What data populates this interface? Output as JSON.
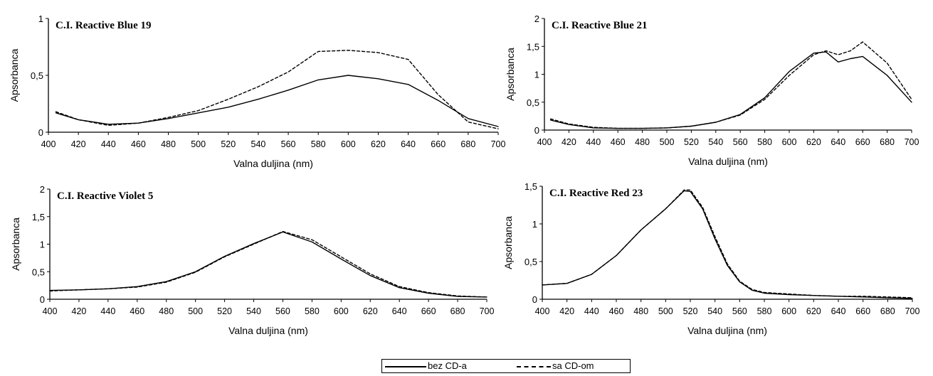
{
  "chart_data": [
    {
      "type": "line",
      "title": "C.I. Reactive Blue 19",
      "xlabel": "Valna duljina (nm)",
      "ylabel": "Apsorbanca",
      "xlim": [
        400,
        700
      ],
      "ylim": [
        0,
        1
      ],
      "xticks": [
        400,
        420,
        440,
        460,
        480,
        500,
        520,
        540,
        560,
        580,
        600,
        620,
        640,
        660,
        680,
        700
      ],
      "yticks": [
        0,
        0.5,
        1
      ],
      "ytick_labels": [
        "0",
        "0,5",
        "1"
      ],
      "series": [
        {
          "name": "bez CD-a",
          "style": "solid",
          "x": [
            405,
            420,
            440,
            460,
            480,
            500,
            520,
            540,
            560,
            580,
            600,
            620,
            640,
            660,
            680,
            700
          ],
          "y": [
            0.17,
            0.11,
            0.07,
            0.08,
            0.12,
            0.17,
            0.22,
            0.29,
            0.37,
            0.46,
            0.5,
            0.47,
            0.42,
            0.28,
            0.12,
            0.05
          ]
        },
        {
          "name": "sa CD-om",
          "style": "dashed",
          "x": [
            405,
            420,
            440,
            460,
            480,
            500,
            520,
            540,
            560,
            580,
            600,
            620,
            640,
            660,
            680,
            700
          ],
          "y": [
            0.18,
            0.11,
            0.06,
            0.08,
            0.13,
            0.19,
            0.29,
            0.4,
            0.53,
            0.71,
            0.72,
            0.7,
            0.64,
            0.33,
            0.09,
            0.03
          ]
        }
      ]
    },
    {
      "type": "line",
      "title": "C.I. Reactive Blue 21",
      "xlabel": "Valna duljina (nm)",
      "ylabel": "Apsorbanca",
      "xlim": [
        400,
        700
      ],
      "ylim": [
        0,
        2
      ],
      "xticks": [
        400,
        420,
        440,
        460,
        480,
        500,
        520,
        540,
        560,
        580,
        600,
        620,
        640,
        660,
        680,
        700
      ],
      "yticks": [
        0,
        0.5,
        1,
        1.5,
        2
      ],
      "ytick_labels": [
        "0",
        "0,5",
        "1",
        "1,5",
        "2"
      ],
      "series": [
        {
          "name": "bez CD-a",
          "style": "solid",
          "x": [
            405,
            420,
            440,
            460,
            480,
            500,
            520,
            540,
            560,
            580,
            600,
            620,
            630,
            640,
            650,
            660,
            680,
            700
          ],
          "y": [
            0.18,
            0.1,
            0.04,
            0.03,
            0.03,
            0.04,
            0.07,
            0.14,
            0.28,
            0.58,
            1.05,
            1.38,
            1.4,
            1.22,
            1.28,
            1.32,
            0.98,
            0.5
          ]
        },
        {
          "name": "sa CD-om",
          "style": "dashed",
          "x": [
            405,
            420,
            440,
            460,
            480,
            500,
            520,
            540,
            560,
            580,
            600,
            620,
            630,
            640,
            650,
            660,
            680,
            700
          ],
          "y": [
            0.2,
            0.11,
            0.05,
            0.03,
            0.03,
            0.04,
            0.07,
            0.14,
            0.27,
            0.55,
            0.98,
            1.35,
            1.42,
            1.35,
            1.42,
            1.58,
            1.2,
            0.55
          ]
        }
      ]
    },
    {
      "type": "line",
      "title": "C.I. Reactive Violet 5",
      "xlabel": "Valna duljina (nm)",
      "ylabel": "Apsorbanca",
      "xlim": [
        400,
        700
      ],
      "ylim": [
        0,
        2
      ],
      "xticks": [
        400,
        420,
        440,
        460,
        480,
        500,
        520,
        540,
        560,
        580,
        600,
        620,
        640,
        660,
        680,
        700
      ],
      "yticks": [
        0,
        0.5,
        1,
        1.5,
        2
      ],
      "ytick_labels": [
        "0",
        "0,5",
        "1",
        "1,5",
        "2"
      ],
      "series": [
        {
          "name": "bez CD-a",
          "style": "solid",
          "x": [
            400,
            420,
            440,
            460,
            480,
            500,
            520,
            540,
            560,
            580,
            600,
            620,
            640,
            660,
            680,
            700
          ],
          "y": [
            0.16,
            0.17,
            0.19,
            0.23,
            0.32,
            0.5,
            0.78,
            1.01,
            1.22,
            1.04,
            0.73,
            0.43,
            0.21,
            0.11,
            0.05,
            0.04
          ]
        },
        {
          "name": "sa CD-om",
          "style": "dashed",
          "x": [
            400,
            420,
            440,
            460,
            480,
            500,
            520,
            540,
            560,
            580,
            600,
            620,
            640,
            660,
            680,
            700
          ],
          "y": [
            0.15,
            0.17,
            0.19,
            0.22,
            0.31,
            0.49,
            0.77,
            1.0,
            1.23,
            1.08,
            0.77,
            0.46,
            0.23,
            0.12,
            0.06,
            0.04
          ]
        }
      ]
    },
    {
      "type": "line",
      "title": "C.I. Reactive Red 23",
      "xlabel": "Valna duljina (nm)",
      "ylabel": "Apsorbanca",
      "xlim": [
        400,
        700
      ],
      "ylim": [
        0,
        1.5
      ],
      "xticks": [
        400,
        420,
        440,
        460,
        480,
        500,
        520,
        540,
        560,
        580,
        600,
        620,
        640,
        660,
        680,
        700
      ],
      "yticks": [
        0,
        0.5,
        1,
        1.5
      ],
      "ytick_labels": [
        "0",
        "0,5",
        "1",
        "1,5"
      ],
      "series": [
        {
          "name": "bez CD-a",
          "style": "solid",
          "x": [
            400,
            420,
            440,
            460,
            480,
            500,
            515,
            520,
            530,
            540,
            550,
            560,
            570,
            580,
            600,
            620,
            640,
            660,
            680,
            700
          ],
          "y": [
            0.19,
            0.21,
            0.33,
            0.58,
            0.92,
            1.2,
            1.44,
            1.43,
            1.2,
            0.8,
            0.45,
            0.23,
            0.12,
            0.08,
            0.06,
            0.05,
            0.04,
            0.03,
            0.02,
            0.01
          ]
        },
        {
          "name": "sa CD-om",
          "style": "dashed",
          "x": [
            400,
            420,
            440,
            460,
            480,
            500,
            515,
            520,
            530,
            540,
            550,
            560,
            570,
            580,
            600,
            620,
            640,
            660,
            680,
            700
          ],
          "y": [
            0.19,
            0.21,
            0.33,
            0.58,
            0.92,
            1.2,
            1.45,
            1.45,
            1.22,
            0.83,
            0.47,
            0.24,
            0.13,
            0.09,
            0.07,
            0.05,
            0.04,
            0.04,
            0.03,
            0.02
          ]
        }
      ]
    }
  ],
  "legend": {
    "items": [
      {
        "label": "bez CD-a",
        "style": "solid"
      },
      {
        "label": "sa CD-om",
        "style": "dashed"
      }
    ]
  }
}
